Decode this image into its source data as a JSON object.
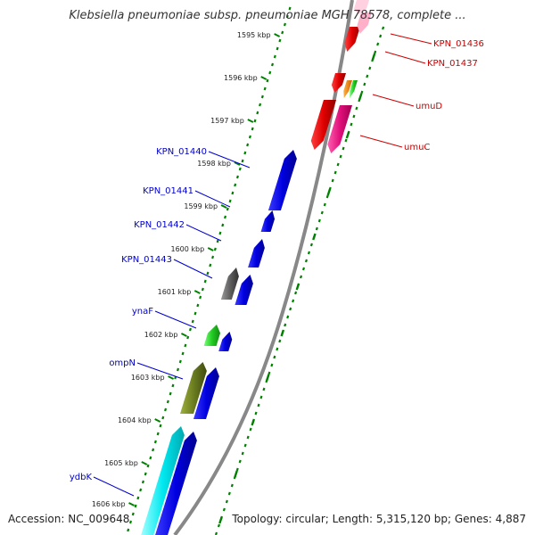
{
  "title": "Klebsiella pneumoniae subsp. pneumoniae MGH 78578, complete ...",
  "accession": "Accession: NC_009648",
  "summary": "Topology: circular; Length: 5,315,120 bp; Genes: 4,887",
  "colors": {
    "label_reverse": "#0000cc",
    "label_forward": "#cc0000",
    "tick_green": "#008000",
    "backbone": "#888888"
  },
  "ruler_ticks": [
    "1595 kbp",
    "1596 kbp",
    "1597 kbp",
    "1598 kbp",
    "1599 kbp",
    "1600 kbp",
    "1601 kbp",
    "1602 kbp",
    "1603 kbp",
    "1604 kbp",
    "1605 kbp",
    "1606 kbp"
  ],
  "genes_reverse": [
    {
      "label": "KPN_01440",
      "color": "#0000ee"
    },
    {
      "label": "KPN_01441",
      "color": "#0000ee"
    },
    {
      "label": "KPN_01442",
      "color": "#0000ee"
    },
    {
      "label": "KPN_01443",
      "color": "#0000ee"
    },
    {
      "label": "ynaF",
      "color": "#0000ee"
    },
    {
      "label": "ompN",
      "color": "#0000ee"
    },
    {
      "label": "ydbK",
      "color": "#0000ee"
    }
  ],
  "genes_forward": [
    {
      "label": "KPN_01436",
      "color": "#ee0000"
    },
    {
      "label": "KPN_01437",
      "color": "#ee0000"
    },
    {
      "label": "umuD",
      "color": "#ee0000"
    },
    {
      "label": "umuC",
      "color": "#ee0000"
    }
  ]
}
